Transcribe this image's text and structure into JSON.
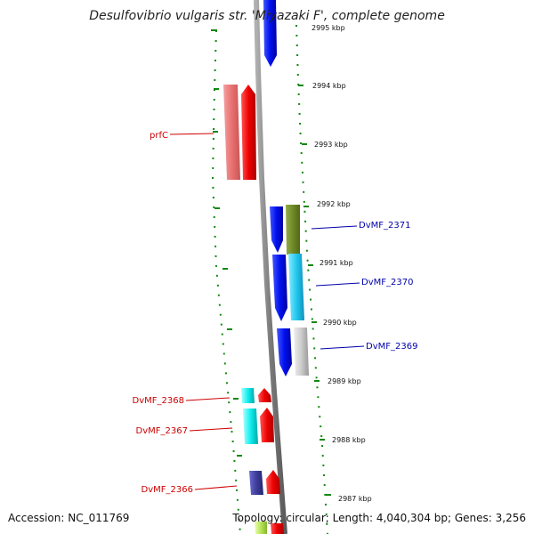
{
  "title": "Desulfovibrio vulgaris str. 'Miyazaki F', complete genome",
  "footer": {
    "accession": "Accession: NC_011769",
    "summary": "Topology: circular; Length: 4,040,304 bp; Genes: 3,256"
  },
  "colors": {
    "forward_label": "#cc0000",
    "reverse_label": "#0000aa",
    "backbone": "#888888",
    "tick": "#118811",
    "strand_red": "#ee1111",
    "strand_blue": "#1122ee"
  },
  "ruler": {
    "labels": [
      "2995 kbp",
      "2994 kbp",
      "2993 kbp",
      "2992 kbp",
      "2991 kbp",
      "2990 kbp",
      "2989 kbp",
      "2988 kbp",
      "2987 kbp"
    ]
  },
  "gene_labels": [
    {
      "text": "prfC",
      "strand": "forward"
    },
    {
      "text": "DvMF_2371",
      "strand": "reverse"
    },
    {
      "text": "DvMF_2370",
      "strand": "reverse"
    },
    {
      "text": "DvMF_2369",
      "strand": "reverse"
    },
    {
      "text": "DvMF_2368",
      "strand": "forward"
    },
    {
      "text": "DvMF_2367",
      "strand": "forward"
    },
    {
      "text": "DvMF_2366",
      "strand": "forward"
    }
  ]
}
